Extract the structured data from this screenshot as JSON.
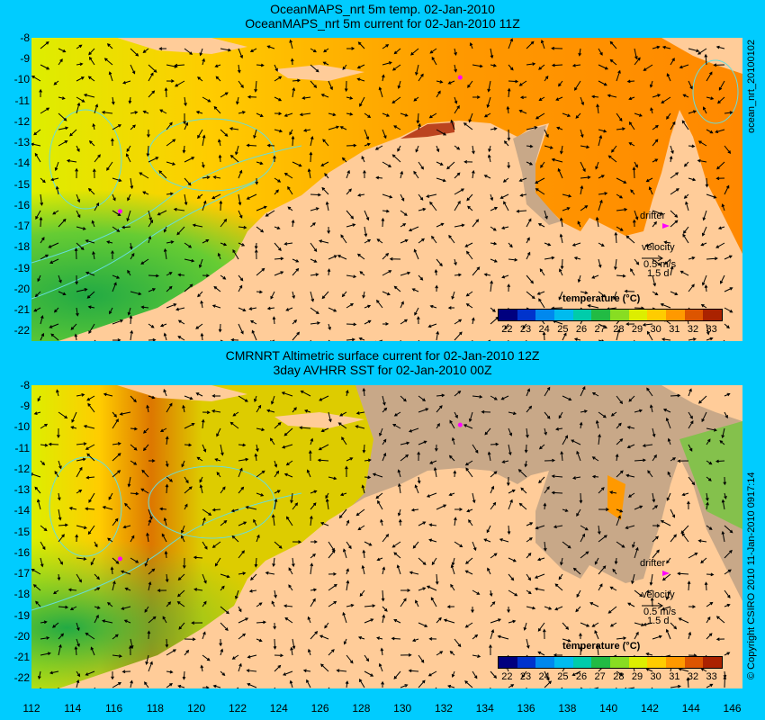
{
  "top_panel": {
    "title_line1": "OceanMAPS_nrt 5m temp. 02-Jan-2010",
    "title_line2": "OceanMAPS_nrt 5m current for 02-Jan-2010 11Z",
    "side_label": "ocean_nrt_20100102",
    "legend_title": "temperature (°C)",
    "drifter_label": "drifter",
    "velocity_label": "velocity",
    "velocity_scale": "0.5 m/s",
    "velocity_days": "1.5 d"
  },
  "bottom_panel": {
    "title_line1": "CMRNRT Altimetric surface current for 02-Jan-2010 12Z",
    "title_line2": "3day AVHRR SST for 02-Jan-2010 00Z",
    "side_label": "© Copyright CSIRO 2010   11-Jan-2010 0917:14",
    "legend_title": "temperature (°C)",
    "drifter_label": "drifter",
    "velocity_label": "velocity",
    "velocity_scale": "0.5 m/s",
    "velocity_days": "1.5 d"
  },
  "axes": {
    "lat_ticks": [
      "-8",
      "-9",
      "-10",
      "-11",
      "-12",
      "-13",
      "-14",
      "-15",
      "-16",
      "-17",
      "-18",
      "-19",
      "-20",
      "-21",
      "-22"
    ],
    "lon_ticks": [
      "112",
      "114",
      "116",
      "118",
      "120",
      "122",
      "124",
      "126",
      "128",
      "130",
      "132",
      "134",
      "136",
      "138",
      "140",
      "142",
      "144",
      "146"
    ],
    "lon_range": [
      112,
      146.5
    ],
    "lat_range": [
      -8,
      -22.5
    ]
  },
  "colorbar": {
    "ticks": [
      "22",
      "23",
      "24",
      "25",
      "26",
      "27",
      "28",
      "29",
      "30",
      "31",
      "32",
      "33"
    ],
    "colors": [
      "#00007f",
      "#0033cc",
      "#0088ee",
      "#00bbee",
      "#00ccaa",
      "#22bb44",
      "#88dd22",
      "#ddee00",
      "#ffcc00",
      "#ff9900",
      "#dd5500",
      "#aa2200"
    ]
  },
  "colors": {
    "background": "#00ccff",
    "land": "#ffcc99",
    "no_data": "#c8a888",
    "contour": "#66dddd",
    "drifter": "#ff00ff"
  },
  "drifters": [
    {
      "lon": 116.3,
      "lat": -16.3
    },
    {
      "lon": 132.8,
      "lat": -9.9
    }
  ]
}
